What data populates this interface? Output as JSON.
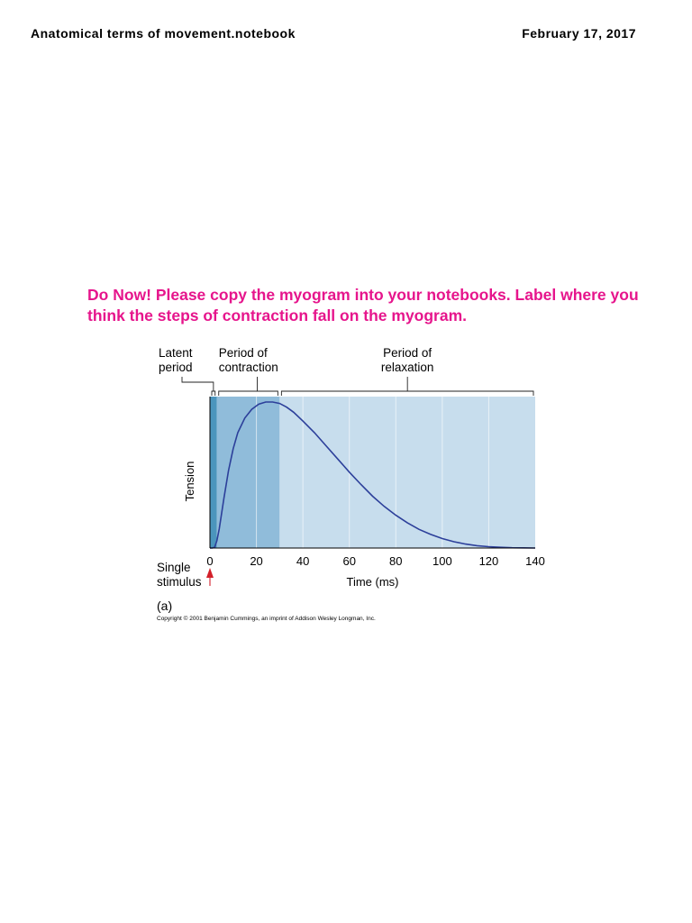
{
  "header": {
    "title": "Anatomical terms of movement.notebook",
    "date": "February 17, 2017"
  },
  "prompt": "Do Now! Please copy the myogram into your notebooks. Label where you think the steps of contraction fall on the myogram.",
  "chart_data": {
    "type": "line",
    "xlabel": "Time (ms)",
    "ylabel": "Tension",
    "xlim": [
      0,
      140
    ],
    "xticks": [
      0,
      20,
      40,
      60,
      80,
      100,
      120,
      140
    ],
    "grid": true,
    "series": [
      {
        "x": [
          0,
          1,
          2,
          3,
          4,
          6,
          8,
          10,
          12,
          15,
          18,
          21,
          24,
          27,
          30,
          33,
          36,
          40,
          45,
          50,
          55,
          60,
          65,
          70,
          75,
          80,
          85,
          90,
          95,
          100,
          105,
          110,
          115,
          120,
          125,
          130,
          135,
          140
        ],
        "y": [
          0,
          0,
          0.005,
          0.05,
          0.13,
          0.34,
          0.53,
          0.68,
          0.79,
          0.89,
          0.95,
          0.985,
          1.0,
          1.0,
          0.99,
          0.965,
          0.93,
          0.87,
          0.79,
          0.7,
          0.61,
          0.52,
          0.435,
          0.355,
          0.285,
          0.225,
          0.172,
          0.128,
          0.093,
          0.065,
          0.043,
          0.027,
          0.016,
          0.009,
          0.005,
          0.002,
          0.001,
          0
        ]
      }
    ],
    "periods": [
      {
        "label_lines": [
          "Latent",
          "period"
        ],
        "start": 0,
        "end": 3,
        "color": "#4b95bd"
      },
      {
        "label_lines": [
          "Period of",
          "contraction"
        ],
        "start": 3,
        "end": 30,
        "color": "#90bcda"
      },
      {
        "label_lines": [
          "Period of",
          "relaxation"
        ],
        "start": 30,
        "end": 140,
        "color": "#c7dded"
      }
    ],
    "stimulus_label_lines": [
      "Single",
      "stimulus"
    ],
    "panel_label": "(a)",
    "copyright": "Copyright © 2001 Benjamin Cummings, an imprint of Addison Wesley Longman, Inc.",
    "line_color": "#2c3f9a",
    "stimulus_color": "#d3202a"
  }
}
